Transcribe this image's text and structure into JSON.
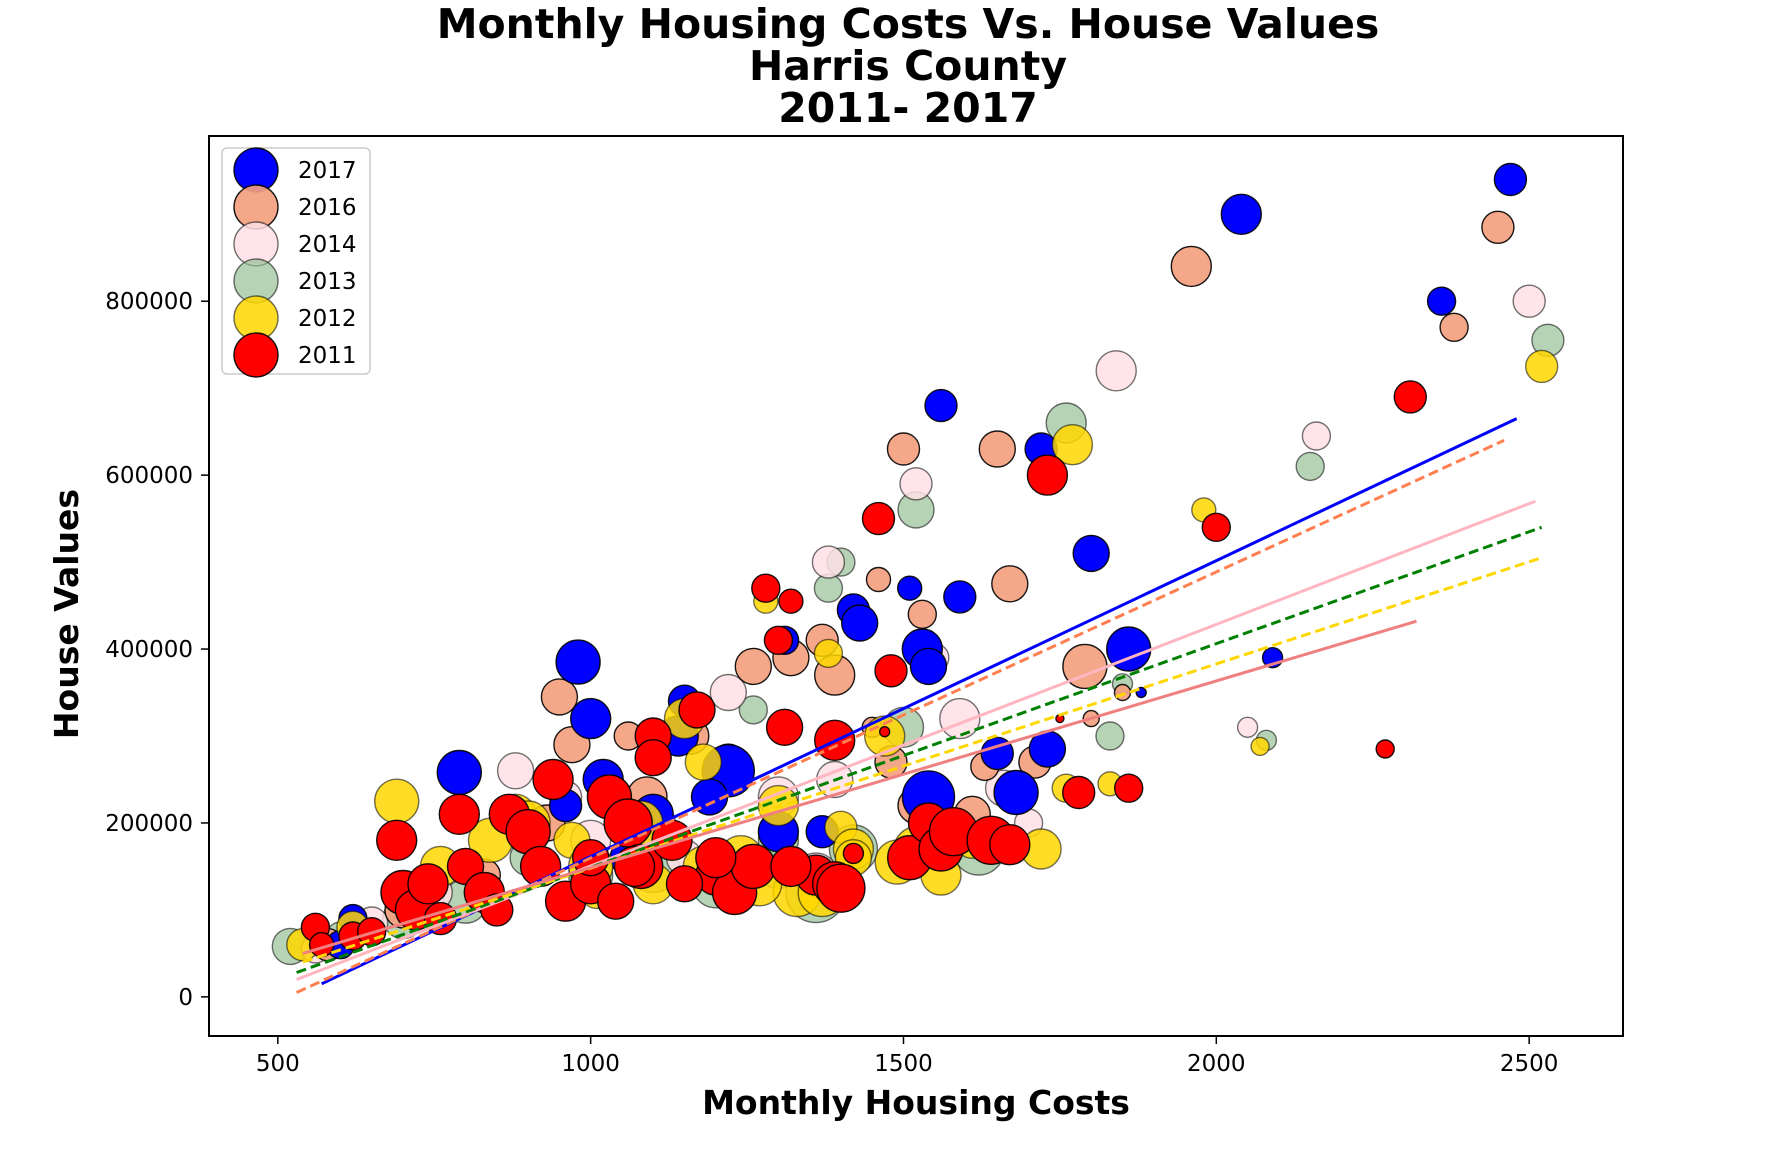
{
  "chart_data": {
    "type": "scatter",
    "title": [
      "Monthly Housing Costs Vs. House Values",
      "Harris County",
      "2011- 2017"
    ],
    "xlabel": "Monthly Housing Costs",
    "ylabel": "House Values",
    "xlim": [
      390,
      2650
    ],
    "ylim": [
      -45000,
      990000
    ],
    "xticks": [
      500,
      1000,
      1500,
      2000,
      2500
    ],
    "yticks": [
      0,
      200000,
      400000,
      600000,
      800000
    ],
    "grid": false,
    "legend": {
      "placement": "top-left",
      "entries": [
        "2017",
        "2016",
        "2014",
        "2013",
        "2012",
        "2011"
      ]
    },
    "series": [
      {
        "name": "2013",
        "color": "#8fbc8f",
        "alpha": 0.65,
        "points": [
          [
            520,
            58000,
            18
          ],
          [
            600,
            70000,
            14
          ],
          [
            700,
            90000,
            20
          ],
          [
            800,
            110000,
            22
          ],
          [
            900,
            160000,
            18
          ],
          [
            1000,
            140000,
            22
          ],
          [
            1100,
            150000,
            26
          ],
          [
            1200,
            130000,
            24
          ],
          [
            1300,
            180000,
            20
          ],
          [
            1360,
            120000,
            30
          ],
          [
            1420,
            170000,
            24
          ],
          [
            1500,
            310000,
            20
          ],
          [
            1520,
            560000,
            18
          ],
          [
            1400,
            500000,
            14
          ],
          [
            1380,
            470000,
            14
          ],
          [
            1620,
            170000,
            26
          ],
          [
            1760,
            660000,
            20
          ],
          [
            1830,
            300000,
            14
          ],
          [
            1850,
            360000,
            10
          ],
          [
            2080,
            295000,
            10
          ],
          [
            2150,
            610000,
            14
          ],
          [
            2530,
            755000,
            16
          ],
          [
            1300,
            150000,
            22
          ],
          [
            1140,
            300000,
            16
          ],
          [
            1260,
            330000,
            14
          ]
        ]
      },
      {
        "name": "2014",
        "color": "#ffe0e6",
        "alpha": 0.85,
        "points": [
          [
            560,
            55000,
            14
          ],
          [
            650,
            85000,
            16
          ],
          [
            750,
            120000,
            18
          ],
          [
            880,
            260000,
            18
          ],
          [
            960,
            230000,
            16
          ],
          [
            1100,
            200000,
            22
          ],
          [
            1220,
            350000,
            18
          ],
          [
            1300,
            230000,
            20
          ],
          [
            1390,
            250000,
            18
          ],
          [
            1430,
            430000,
            16
          ],
          [
            1520,
            590000,
            16
          ],
          [
            1550,
            390000,
            14
          ],
          [
            1590,
            320000,
            20
          ],
          [
            1660,
            240000,
            18
          ],
          [
            1700,
            200000,
            14
          ],
          [
            1380,
            500000,
            16
          ],
          [
            1840,
            720000,
            20
          ],
          [
            2160,
            645000,
            14
          ],
          [
            2050,
            310000,
            10
          ],
          [
            2500,
            800000,
            16
          ],
          [
            1000,
            180000,
            20
          ],
          [
            1150,
            160000,
            18
          ],
          [
            1360,
            140000,
            22
          ]
        ]
      },
      {
        "name": "2016",
        "color": "#f4a07f",
        "alpha": 0.92,
        "points": [
          [
            580,
            60000,
            16
          ],
          [
            700,
            100000,
            18
          ],
          [
            830,
            140000,
            16
          ],
          [
            930,
            200000,
            18
          ],
          [
            950,
            345000,
            18
          ],
          [
            970,
            290000,
            18
          ],
          [
            1060,
            300000,
            14
          ],
          [
            1160,
            300000,
            18
          ],
          [
            1260,
            380000,
            18
          ],
          [
            1320,
            390000,
            18
          ],
          [
            1370,
            410000,
            16
          ],
          [
            1390,
            370000,
            20
          ],
          [
            1480,
            270000,
            16
          ],
          [
            1520,
            220000,
            18
          ],
          [
            1530,
            440000,
            14
          ],
          [
            1460,
            480000,
            12
          ],
          [
            1500,
            630000,
            16
          ],
          [
            1650,
            630000,
            18
          ],
          [
            1670,
            475000,
            18
          ],
          [
            1610,
            210000,
            18
          ],
          [
            1630,
            265000,
            14
          ],
          [
            1710,
            270000,
            16
          ],
          [
            1790,
            380000,
            22
          ],
          [
            1960,
            840000,
            20
          ],
          [
            2450,
            885000,
            16
          ],
          [
            2380,
            770000,
            14
          ],
          [
            1850,
            350000,
            8
          ],
          [
            1090,
            230000,
            20
          ],
          [
            1220,
            270000,
            18
          ],
          [
            1450,
            310000,
            10
          ],
          [
            1800,
            320000,
            8
          ]
        ]
      },
      {
        "name": "2017",
        "color": "#0000ff",
        "alpha": 1.0,
        "points": [
          [
            600,
            60000,
            14
          ],
          [
            620,
            90000,
            14
          ],
          [
            790,
            258000,
            22
          ],
          [
            960,
            220000,
            16
          ],
          [
            980,
            385000,
            22
          ],
          [
            1000,
            320000,
            20
          ],
          [
            1020,
            250000,
            20
          ],
          [
            1060,
            160000,
            18
          ],
          [
            1100,
            210000,
            20
          ],
          [
            1140,
            300000,
            20
          ],
          [
            1150,
            340000,
            16
          ],
          [
            1220,
            260000,
            26
          ],
          [
            1310,
            410000,
            14
          ],
          [
            1370,
            190000,
            16
          ],
          [
            1420,
            445000,
            16
          ],
          [
            1430,
            430000,
            18
          ],
          [
            1510,
            470000,
            12
          ],
          [
            1540,
            230000,
            26
          ],
          [
            1530,
            400000,
            20
          ],
          [
            1540,
            380000,
            18
          ],
          [
            1560,
            680000,
            16
          ],
          [
            1590,
            460000,
            16
          ],
          [
            1650,
            280000,
            16
          ],
          [
            1680,
            235000,
            22
          ],
          [
            1720,
            630000,
            16
          ],
          [
            1730,
            285000,
            18
          ],
          [
            1800,
            510000,
            18
          ],
          [
            1860,
            400000,
            22
          ],
          [
            2040,
            900000,
            20
          ],
          [
            2090,
            390000,
            10
          ],
          [
            2360,
            800000,
            14
          ],
          [
            2470,
            940000,
            16
          ],
          [
            1880,
            350000,
            5
          ],
          [
            1190,
            230000,
            18
          ],
          [
            1300,
            190000,
            20
          ]
        ]
      },
      {
        "name": "2012",
        "color": "#ffd700",
        "alpha": 0.85,
        "points": [
          [
            540,
            60000,
            16
          ],
          [
            620,
            80000,
            16
          ],
          [
            690,
            225000,
            22
          ],
          [
            760,
            150000,
            20
          ],
          [
            840,
            180000,
            22
          ],
          [
            880,
            210000,
            20
          ],
          [
            900,
            200000,
            22
          ],
          [
            940,
            250000,
            18
          ],
          [
            970,
            180000,
            18
          ],
          [
            1010,
            120000,
            16
          ],
          [
            1080,
            200000,
            22
          ],
          [
            1150,
            320000,
            20
          ],
          [
            1180,
            270000,
            18
          ],
          [
            1240,
            160000,
            22
          ],
          [
            1280,
            455000,
            12
          ],
          [
            1300,
            220000,
            20
          ],
          [
            1330,
            120000,
            24
          ],
          [
            1380,
            395000,
            14
          ],
          [
            1400,
            195000,
            16
          ],
          [
            1420,
            170000,
            20
          ],
          [
            1470,
            300000,
            20
          ],
          [
            1490,
            155000,
            22
          ],
          [
            1560,
            140000,
            20
          ],
          [
            1610,
            180000,
            18
          ],
          [
            1720,
            170000,
            20
          ],
          [
            1770,
            635000,
            20
          ],
          [
            1760,
            240000,
            14
          ],
          [
            1830,
            245000,
            12
          ],
          [
            1980,
            560000,
            12
          ],
          [
            2070,
            288000,
            9
          ],
          [
            2520,
            725000,
            16
          ],
          [
            1000,
            150000,
            22
          ],
          [
            1100,
            130000,
            20
          ],
          [
            1180,
            150000,
            20
          ],
          [
            1270,
            130000,
            22
          ],
          [
            1370,
            120000,
            24
          ],
          [
            1420,
            160000,
            18
          ],
          [
            1520,
            170000,
            22
          ]
        ]
      },
      {
        "name": "2011",
        "color": "#ff0000",
        "alpha": 1.0,
        "points": [
          [
            560,
            80000,
            14
          ],
          [
            570,
            60000,
            12
          ],
          [
            620,
            70000,
            14
          ],
          [
            650,
            75000,
            14
          ],
          [
            690,
            180000,
            20
          ],
          [
            700,
            120000,
            22
          ],
          [
            720,
            100000,
            20
          ],
          [
            740,
            130000,
            20
          ],
          [
            760,
            90000,
            16
          ],
          [
            790,
            210000,
            20
          ],
          [
            800,
            150000,
            18
          ],
          [
            830,
            120000,
            20
          ],
          [
            850,
            100000,
            16
          ],
          [
            870,
            210000,
            20
          ],
          [
            900,
            190000,
            22
          ],
          [
            920,
            150000,
            20
          ],
          [
            940,
            250000,
            20
          ],
          [
            960,
            110000,
            20
          ],
          [
            1000,
            130000,
            20
          ],
          [
            1030,
            230000,
            22
          ],
          [
            1060,
            200000,
            24
          ],
          [
            1080,
            150000,
            22
          ],
          [
            1100,
            300000,
            18
          ],
          [
            1100,
            275000,
            18
          ],
          [
            1130,
            180000,
            20
          ],
          [
            1170,
            330000,
            18
          ],
          [
            1200,
            140000,
            20
          ],
          [
            1230,
            120000,
            22
          ],
          [
            1260,
            150000,
            22
          ],
          [
            1280,
            470000,
            14
          ],
          [
            1300,
            410000,
            14
          ],
          [
            1320,
            455000,
            12
          ],
          [
            1310,
            310000,
            18
          ],
          [
            1360,
            140000,
            20
          ],
          [
            1390,
            130000,
            22
          ],
          [
            1390,
            295000,
            20
          ],
          [
            1420,
            165000,
            10
          ],
          [
            1460,
            550000,
            16
          ],
          [
            1480,
            375000,
            16
          ],
          [
            1510,
            160000,
            22
          ],
          [
            1540,
            200000,
            20
          ],
          [
            1560,
            170000,
            22
          ],
          [
            1580,
            190000,
            24
          ],
          [
            1640,
            180000,
            24
          ],
          [
            1670,
            175000,
            20
          ],
          [
            1730,
            600000,
            20
          ],
          [
            1780,
            235000,
            16
          ],
          [
            1860,
            240000,
            14
          ],
          [
            2000,
            540000,
            14
          ],
          [
            2270,
            285000,
            9
          ],
          [
            2310,
            690000,
            16
          ],
          [
            1400,
            125000,
            24
          ],
          [
            1200,
            160000,
            20
          ],
          [
            1150,
            130000,
            18
          ],
          [
            1320,
            150000,
            20
          ],
          [
            1040,
            110000,
            18
          ],
          [
            1070,
            150000,
            20
          ],
          [
            1470,
            305000,
            5
          ],
          [
            1750,
            320000,
            4
          ],
          [
            1000,
            160000,
            18
          ]
        ]
      }
    ],
    "trend_lines": [
      {
        "name": "2017",
        "color": "#0000ff",
        "style": "solid",
        "x": [
          570,
          2480
        ],
        "y": [
          15000,
          665000
        ]
      },
      {
        "name": "2016",
        "color": "#ff7f50",
        "style": "dashed",
        "x": [
          530,
          2460
        ],
        "y": [
          5000,
          640000
        ]
      },
      {
        "name": "2014",
        "color": "#ffb6c1",
        "style": "solid",
        "x": [
          530,
          2510
        ],
        "y": [
          20000,
          570000
        ]
      },
      {
        "name": "2013",
        "color": "#008000",
        "style": "dashed",
        "x": [
          530,
          2520
        ],
        "y": [
          28000,
          540000
        ]
      },
      {
        "name": "2012",
        "color": "#ffd700",
        "style": "dashed",
        "x": [
          540,
          2520
        ],
        "y": [
          40000,
          505000
        ]
      },
      {
        "name": "2011",
        "color": "#f08080",
        "style": "solid",
        "x": [
          540,
          2320
        ],
        "y": [
          50000,
          432000
        ]
      }
    ]
  }
}
